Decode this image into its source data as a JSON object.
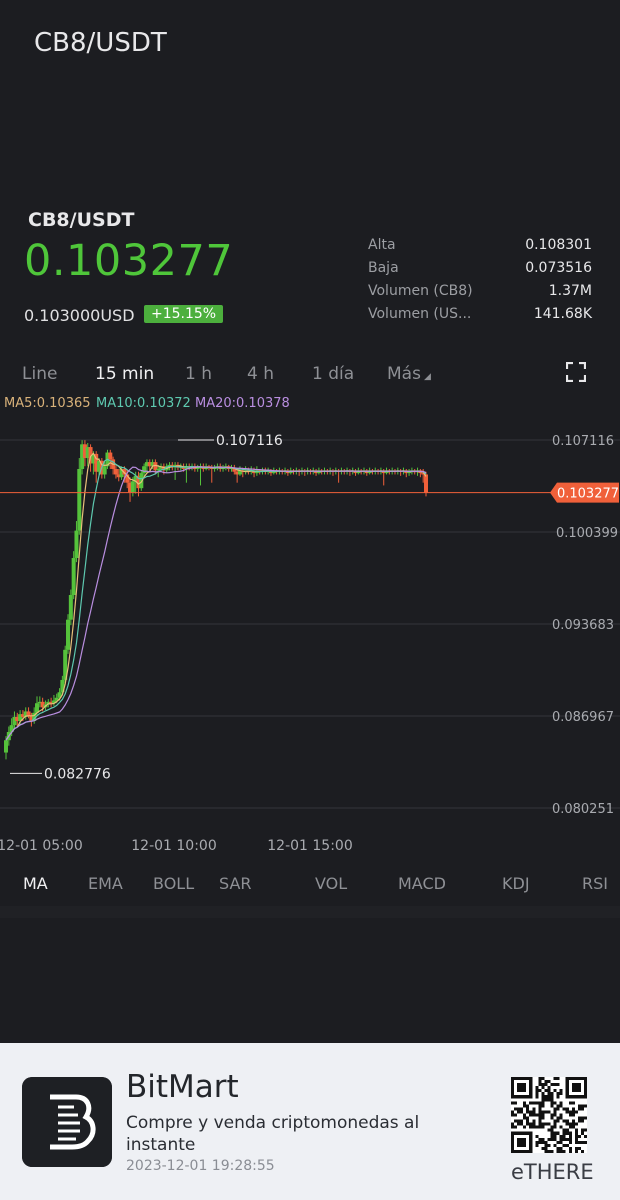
{
  "header": {
    "title": "CB8/USDT"
  },
  "ticker": {
    "pair": "CB8/USDT",
    "price": "0.103277",
    "usd_price": "0.103000USD",
    "change": "+15.15%",
    "stats": [
      {
        "label": "Alta",
        "value": "0.108301"
      },
      {
        "label": "Baja",
        "value": "0.073516"
      },
      {
        "label": "Volumen (CB8)",
        "value": "1.37M"
      },
      {
        "label": "Volumen (US...",
        "value": "141.68K"
      }
    ]
  },
  "timeframes": [
    "Line",
    "15 min",
    "1 h",
    "4 h",
    "1 día",
    "Más"
  ],
  "active_timeframe": "15 min",
  "ma_labels": {
    "ma5": "MA5:0.10365",
    "ma10": "MA10:0.10372",
    "ma20": "MA20:0.10378"
  },
  "chart_data": {
    "type": "candlestick",
    "y_ticks": [
      "0.107116",
      "0.100399",
      "0.093683",
      "0.086967",
      "0.080251"
    ],
    "y_tick_values": [
      0.107116,
      0.100399,
      0.093683,
      0.086967,
      0.080251
    ],
    "x_ticks": [
      "12-01 05:00",
      "12-01 10:00",
      "12-01 15:00"
    ],
    "current_price": "0.103277",
    "current_price_value": 0.103277,
    "high_annotation": "0.107116",
    "high_value": 0.107116,
    "low_annotation": "0.082776",
    "low_value": 0.082776,
    "colors": {
      "up": "#55c23b",
      "down": "#f0603a",
      "ma5": "#e8c07a",
      "ma10": "#5ec9b0",
      "ma20": "#b98ee0",
      "price_line": "#f0603a"
    },
    "candles": [
      [
        0.0843,
        0.0852,
        0.0838,
        0.0855
      ],
      [
        0.0852,
        0.0858,
        0.0848,
        0.0862
      ],
      [
        0.0858,
        0.0863,
        0.0855,
        0.0868
      ],
      [
        0.0863,
        0.0869,
        0.086,
        0.0873
      ],
      [
        0.0869,
        0.0866,
        0.0862,
        0.0872
      ],
      [
        0.0866,
        0.0871,
        0.0863,
        0.0874
      ],
      [
        0.0871,
        0.0869,
        0.0866,
        0.0874
      ],
      [
        0.0869,
        0.0873,
        0.0867,
        0.0876
      ],
      [
        0.0873,
        0.087,
        0.0868,
        0.0876
      ],
      [
        0.087,
        0.0866,
        0.0862,
        0.0872
      ],
      [
        0.0866,
        0.0872,
        0.0864,
        0.0876
      ],
      [
        0.0872,
        0.0879,
        0.087,
        0.0884
      ],
      [
        0.0879,
        0.088,
        0.0876,
        0.0884
      ],
      [
        0.088,
        0.0876,
        0.0873,
        0.0883
      ],
      [
        0.0876,
        0.0878,
        0.0874,
        0.0881
      ],
      [
        0.0878,
        0.088,
        0.0876,
        0.0882
      ],
      [
        0.088,
        0.0879,
        0.0876,
        0.0883
      ],
      [
        0.0879,
        0.0881,
        0.0877,
        0.0885
      ],
      [
        0.0881,
        0.0883,
        0.0879,
        0.0886
      ],
      [
        0.0883,
        0.0887,
        0.0881,
        0.089
      ],
      [
        0.0887,
        0.0896,
        0.0885,
        0.0899
      ],
      [
        0.0896,
        0.0918,
        0.0894,
        0.0921
      ],
      [
        0.0918,
        0.094,
        0.0915,
        0.0944
      ],
      [
        0.094,
        0.0958,
        0.0936,
        0.0962
      ],
      [
        0.0958,
        0.0985,
        0.0955,
        0.099
      ],
      [
        0.0985,
        0.1005,
        0.0982,
        0.1012
      ],
      [
        0.1005,
        0.105,
        0.1002,
        0.1058
      ],
      [
        0.105,
        0.1068,
        0.1046,
        0.1071
      ],
      [
        0.1068,
        0.1058,
        0.1052,
        0.1071
      ],
      [
        0.1058,
        0.1066,
        0.1052,
        0.1069
      ],
      [
        0.1066,
        0.1054,
        0.1048,
        0.1068
      ],
      [
        0.1054,
        0.1061,
        0.1046,
        0.1063
      ],
      [
        0.1061,
        0.1048,
        0.104,
        0.1063
      ],
      [
        0.1048,
        0.1056,
        0.1045,
        0.1058
      ],
      [
        0.1056,
        0.1046,
        0.1043,
        0.1058
      ],
      [
        0.1046,
        0.1052,
        0.1043,
        0.1055
      ],
      [
        0.1052,
        0.1062,
        0.105,
        0.1064
      ],
      [
        0.1062,
        0.1057,
        0.105,
        0.1064
      ],
      [
        0.1057,
        0.105,
        0.1046,
        0.1059
      ],
      [
        0.105,
        0.1046,
        0.1043,
        0.1053
      ],
      [
        0.1046,
        0.1044,
        0.1041,
        0.105
      ],
      [
        0.1044,
        0.105,
        0.1042,
        0.1052
      ],
      [
        0.105,
        0.1046,
        0.104,
        0.1052
      ],
      [
        0.1046,
        0.104,
        0.1036,
        0.1049
      ],
      [
        0.104,
        0.1033,
        0.1026,
        0.1044
      ],
      [
        0.1033,
        0.1041,
        0.103,
        0.1044
      ],
      [
        0.1041,
        0.1045,
        0.1032,
        0.1048
      ],
      [
        0.1045,
        0.1036,
        0.103,
        0.1048
      ],
      [
        0.1036,
        0.1047,
        0.1034,
        0.1049
      ],
      [
        0.1047,
        0.1052,
        0.1043,
        0.1054
      ],
      [
        0.1052,
        0.1055,
        0.1047,
        0.1057
      ],
      [
        0.1055,
        0.1052,
        0.1049,
        0.1057
      ],
      [
        0.1052,
        0.1055,
        0.105,
        0.1057
      ],
      [
        0.1055,
        0.1049,
        0.1046,
        0.1057
      ],
      [
        0.1049,
        0.105,
        0.1044,
        0.1053
      ],
      [
        0.105,
        0.1052,
        0.1048,
        0.1054
      ],
      [
        0.1052,
        0.1049,
        0.1046,
        0.1054
      ],
      [
        0.1049,
        0.1052,
        0.1047,
        0.1054
      ],
      [
        0.1052,
        0.1053,
        0.1049,
        0.1055
      ],
      [
        0.1053,
        0.1052,
        0.1049,
        0.1055
      ],
      [
        0.1052,
        0.1053,
        0.1042,
        0.1055
      ],
      [
        0.1053,
        0.1051,
        0.1049,
        0.1055
      ],
      [
        0.1051,
        0.1052,
        0.1049,
        0.1054
      ],
      [
        0.1052,
        0.105,
        0.1048,
        0.1054
      ],
      [
        0.105,
        0.1052,
        0.104,
        0.1054
      ],
      [
        0.1052,
        0.1051,
        0.1049,
        0.1054
      ],
      [
        0.1051,
        0.1052,
        0.1049,
        0.1054
      ],
      [
        0.1052,
        0.105,
        0.1048,
        0.1054
      ],
      [
        0.105,
        0.1051,
        0.1048,
        0.1053
      ],
      [
        0.1051,
        0.1052,
        0.1038,
        0.1054
      ],
      [
        0.1052,
        0.105,
        0.1048,
        0.1054
      ],
      [
        0.105,
        0.1052,
        0.1049,
        0.1054
      ],
      [
        0.1052,
        0.1051,
        0.1049,
        0.1053
      ],
      [
        0.1051,
        0.105,
        0.104,
        0.1053
      ],
      [
        0.105,
        0.1051,
        0.1048,
        0.1053
      ],
      [
        0.1051,
        0.1052,
        0.1049,
        0.1054
      ],
      [
        0.1052,
        0.105,
        0.1048,
        0.1054
      ],
      [
        0.105,
        0.1051,
        0.1048,
        0.1053
      ],
      [
        0.1051,
        0.1052,
        0.1049,
        0.1054
      ],
      [
        0.1052,
        0.105,
        0.1048,
        0.1053
      ],
      [
        0.105,
        0.1051,
        0.1048,
        0.1053
      ],
      [
        0.1051,
        0.1048,
        0.1046,
        0.1053
      ],
      [
        0.1048,
        0.1046,
        0.104,
        0.105
      ],
      [
        0.1046,
        0.1049,
        0.1045,
        0.1052
      ],
      [
        0.1049,
        0.1048,
        0.1044,
        0.1051
      ],
      [
        0.1048,
        0.1049,
        0.1046,
        0.1052
      ],
      [
        0.1049,
        0.1048,
        0.1046,
        0.1051
      ],
      [
        0.1048,
        0.1049,
        0.1046,
        0.1052
      ],
      [
        0.1049,
        0.1047,
        0.1044,
        0.1051
      ],
      [
        0.1047,
        0.1049,
        0.1045,
        0.1052
      ],
      [
        0.1049,
        0.1048,
        0.1046,
        0.105
      ],
      [
        0.1048,
        0.1049,
        0.1046,
        0.1051
      ],
      [
        0.1049,
        0.1048,
        0.1046,
        0.1051
      ],
      [
        0.1048,
        0.1049,
        0.1046,
        0.1051
      ],
      [
        0.1049,
        0.1047,
        0.1045,
        0.105
      ],
      [
        0.1047,
        0.1049,
        0.1046,
        0.1051
      ],
      [
        0.1049,
        0.1048,
        0.1046,
        0.105
      ],
      [
        0.1048,
        0.1049,
        0.1046,
        0.1051
      ],
      [
        0.1049,
        0.1048,
        0.1046,
        0.105
      ],
      [
        0.1048,
        0.1049,
        0.1046,
        0.1051
      ],
      [
        0.1049,
        0.1047,
        0.1045,
        0.105
      ],
      [
        0.1047,
        0.1049,
        0.1046,
        0.1051
      ],
      [
        0.1049,
        0.1048,
        0.1046,
        0.105
      ],
      [
        0.1048,
        0.1049,
        0.1046,
        0.1051
      ],
      [
        0.1049,
        0.1048,
        0.1045,
        0.105
      ],
      [
        0.1048,
        0.1049,
        0.1046,
        0.1051
      ],
      [
        0.1049,
        0.1048,
        0.1045,
        0.105
      ],
      [
        0.1048,
        0.1049,
        0.1046,
        0.1051
      ],
      [
        0.1049,
        0.1048,
        0.1046,
        0.105
      ],
      [
        0.1048,
        0.1049,
        0.1046,
        0.1051
      ],
      [
        0.1049,
        0.1047,
        0.1045,
        0.105
      ],
      [
        0.1047,
        0.1049,
        0.1046,
        0.1051
      ],
      [
        0.1049,
        0.1048,
        0.1046,
        0.105
      ],
      [
        0.1048,
        0.1049,
        0.1046,
        0.1051
      ],
      [
        0.1049,
        0.1048,
        0.1046,
        0.105
      ],
      [
        0.1048,
        0.1049,
        0.1046,
        0.1051
      ],
      [
        0.1049,
        0.1048,
        0.1045,
        0.105
      ],
      [
        0.1048,
        0.1049,
        0.1046,
        0.1051
      ],
      [
        0.1049,
        0.1048,
        0.104,
        0.105
      ],
      [
        0.1048,
        0.1049,
        0.1046,
        0.1051
      ],
      [
        0.1049,
        0.1048,
        0.1046,
        0.105
      ],
      [
        0.1048,
        0.1049,
        0.1046,
        0.1051
      ],
      [
        0.1049,
        0.1048,
        0.1045,
        0.105
      ],
      [
        0.1048,
        0.1049,
        0.1046,
        0.1051
      ],
      [
        0.1049,
        0.1047,
        0.1045,
        0.105
      ],
      [
        0.1047,
        0.1049,
        0.1046,
        0.1051
      ],
      [
        0.1049,
        0.1048,
        0.1046,
        0.105
      ],
      [
        0.1048,
        0.1049,
        0.1046,
        0.1051
      ],
      [
        0.1049,
        0.1047,
        0.1045,
        0.105
      ],
      [
        0.1047,
        0.1049,
        0.1046,
        0.1051
      ],
      [
        0.1049,
        0.1048,
        0.1046,
        0.105
      ],
      [
        0.1048,
        0.1049,
        0.1046,
        0.1051
      ],
      [
        0.1049,
        0.1048,
        0.1046,
        0.105
      ],
      [
        0.1048,
        0.1049,
        0.1046,
        0.1051
      ],
      [
        0.1049,
        0.1047,
        0.1038,
        0.105
      ],
      [
        0.1047,
        0.1049,
        0.1046,
        0.1051
      ],
      [
        0.1049,
        0.1048,
        0.1046,
        0.105
      ],
      [
        0.1048,
        0.1049,
        0.1046,
        0.1051
      ],
      [
        0.1049,
        0.1048,
        0.1046,
        0.105
      ],
      [
        0.1048,
        0.1049,
        0.1046,
        0.1051
      ],
      [
        0.1049,
        0.1048,
        0.1045,
        0.105
      ],
      [
        0.1048,
        0.1049,
        0.1046,
        0.1051
      ],
      [
        0.1049,
        0.1047,
        0.1044,
        0.105
      ],
      [
        0.1047,
        0.1048,
        0.1045,
        0.105
      ],
      [
        0.1048,
        0.1049,
        0.1046,
        0.1051
      ],
      [
        0.1049,
        0.1048,
        0.1046,
        0.105
      ],
      [
        0.1048,
        0.1049,
        0.1045,
        0.1051
      ],
      [
        0.1049,
        0.1047,
        0.1044,
        0.105
      ],
      [
        0.1047,
        0.1046,
        0.104,
        0.105
      ],
      [
        0.1046,
        0.10328,
        0.103,
        0.1048
      ]
    ]
  },
  "indicators": [
    "MA",
    "EMA",
    "BOLL",
    "SAR",
    "VOL",
    "MACD",
    "KDJ",
    "RSI"
  ],
  "active_indicator": "MA",
  "footer": {
    "brand": "BitMart",
    "tagline": "Compre y venda criptomonedas al instante",
    "timestamp": "2023-12-01 19:28:55",
    "qr_caption": "eTHERE"
  }
}
